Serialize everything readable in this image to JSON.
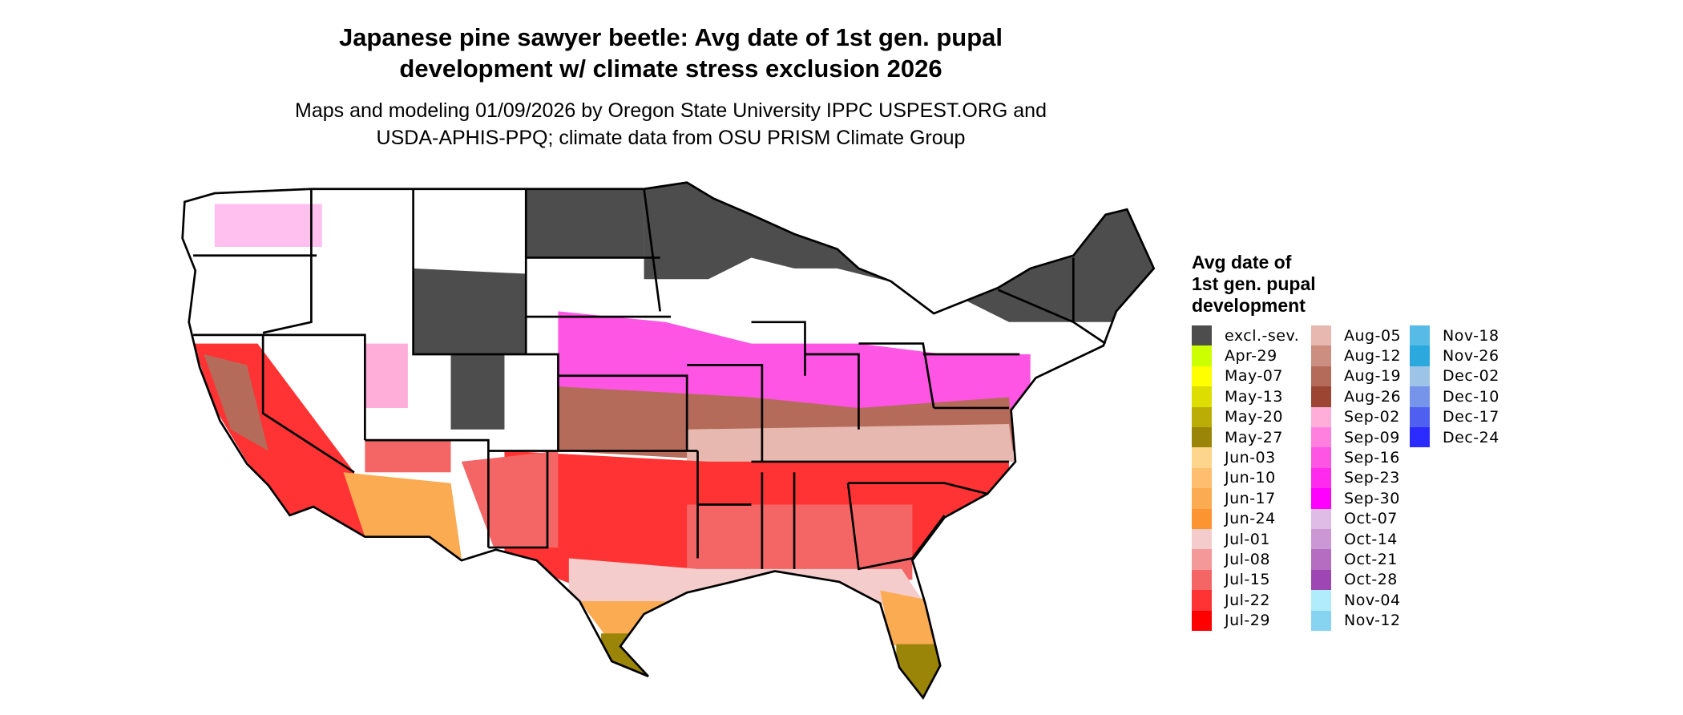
{
  "title": {
    "line1": "Japanese pine sawyer beetle: Avg date of 1st gen. pupal",
    "line2": "development w/ climate stress exclusion 2026"
  },
  "subtitle": {
    "line1": "Maps and modeling 01/09/2026 by Oregon State University IPPC USPEST.ORG and",
    "line2": "USDA-APHIS-PPQ; climate data from OSU PRISM Climate Group"
  },
  "legend": {
    "title_lines": [
      "Avg date of",
      "1st gen. pupal",
      "development"
    ],
    "items": [
      {
        "label": "excl.-sev.",
        "color": "#4d4d4d"
      },
      {
        "label": "Apr-29",
        "color": "#ccff00"
      },
      {
        "label": "May-07",
        "color": "#ffff00"
      },
      {
        "label": "May-13",
        "color": "#dddd00"
      },
      {
        "label": "May-20",
        "color": "#bbad05"
      },
      {
        "label": "May-27",
        "color": "#9a8508"
      },
      {
        "label": "Jun-03",
        "color": "#fdd58c"
      },
      {
        "label": "Jun-10",
        "color": "#fdbf6f"
      },
      {
        "label": "Jun-17",
        "color": "#fbab52"
      },
      {
        "label": "Jun-24",
        "color": "#fd9432"
      },
      {
        "label": "Jul-01",
        "color": "#f4cccc"
      },
      {
        "label": "Jul-08",
        "color": "#f49999"
      },
      {
        "label": "Jul-15",
        "color": "#f46666"
      },
      {
        "label": "Jul-22",
        "color": "#ff3333"
      },
      {
        "label": "Jul-29",
        "color": "#ff0000"
      },
      {
        "label": "Aug-05",
        "color": "#e6b8af"
      },
      {
        "label": "Aug-12",
        "color": "#cc8e80"
      },
      {
        "label": "Aug-19",
        "color": "#b56b5a"
      },
      {
        "label": "Aug-26",
        "color": "#9c4533"
      },
      {
        "label": "Sep-02",
        "color": "#ffaed9"
      },
      {
        "label": "Sep-09",
        "color": "#ff80df"
      },
      {
        "label": "Sep-16",
        "color": "#ff55e5"
      },
      {
        "label": "Sep-23",
        "color": "#ff2aee"
      },
      {
        "label": "Sep-30",
        "color": "#ff00ff"
      },
      {
        "label": "Oct-07",
        "color": "#dfbce6"
      },
      {
        "label": "Oct-14",
        "color": "#cb98d5"
      },
      {
        "label": "Oct-21",
        "color": "#b46dc1"
      },
      {
        "label": "Oct-28",
        "color": "#9f46b5"
      },
      {
        "label": "Nov-04",
        "color": "#b0ecfc"
      },
      {
        "label": "Nov-12",
        "color": "#87d4f0"
      },
      {
        "label": "Nov-18",
        "color": "#56bbe6"
      },
      {
        "label": "Nov-26",
        "color": "#2ba8dd"
      },
      {
        "label": "Dec-02",
        "color": "#9dc3e6"
      },
      {
        "label": "Dec-10",
        "color": "#7794eb"
      },
      {
        "label": "Dec-17",
        "color": "#4f60f0"
      },
      {
        "label": "Dec-24",
        "color": "#2b2bff"
      }
    ]
  }
}
